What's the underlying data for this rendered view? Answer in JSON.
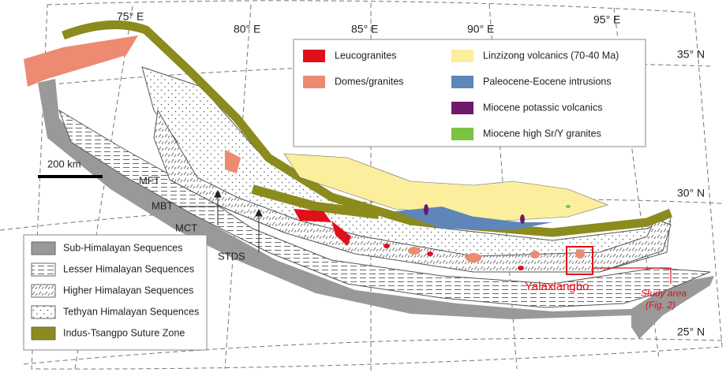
{
  "graticule": {
    "longitudes": [
      "75° E",
      "80° E",
      "85° E",
      "90° E",
      "95° E"
    ],
    "latitudes": [
      "35° N",
      "30° N",
      "25° N"
    ]
  },
  "scale_bar": "200 km",
  "legend_magmatic": [
    "Leucogranites",
    "Domes/granites",
    "Linzizong volcanics (70-40 Ma)",
    "Paleocene-Eocene intrusions",
    "Miocene potassic volcanics",
    "Miocene high Sr/Y granites"
  ],
  "legend_sequences": [
    "Sub-Himalayan Sequences",
    "Lesser Himalayan Sequences",
    "Higher Himalayan Sequences",
    "Tethyan Himalayan Sequences",
    "Indus-Tsangpo Suture Zone"
  ],
  "faults": [
    "MFT",
    "MBT",
    "MCT",
    "STDS"
  ],
  "locality": "Yalaxiangbo",
  "study_area": [
    "Study area",
    "(Fig. 2)"
  ]
}
